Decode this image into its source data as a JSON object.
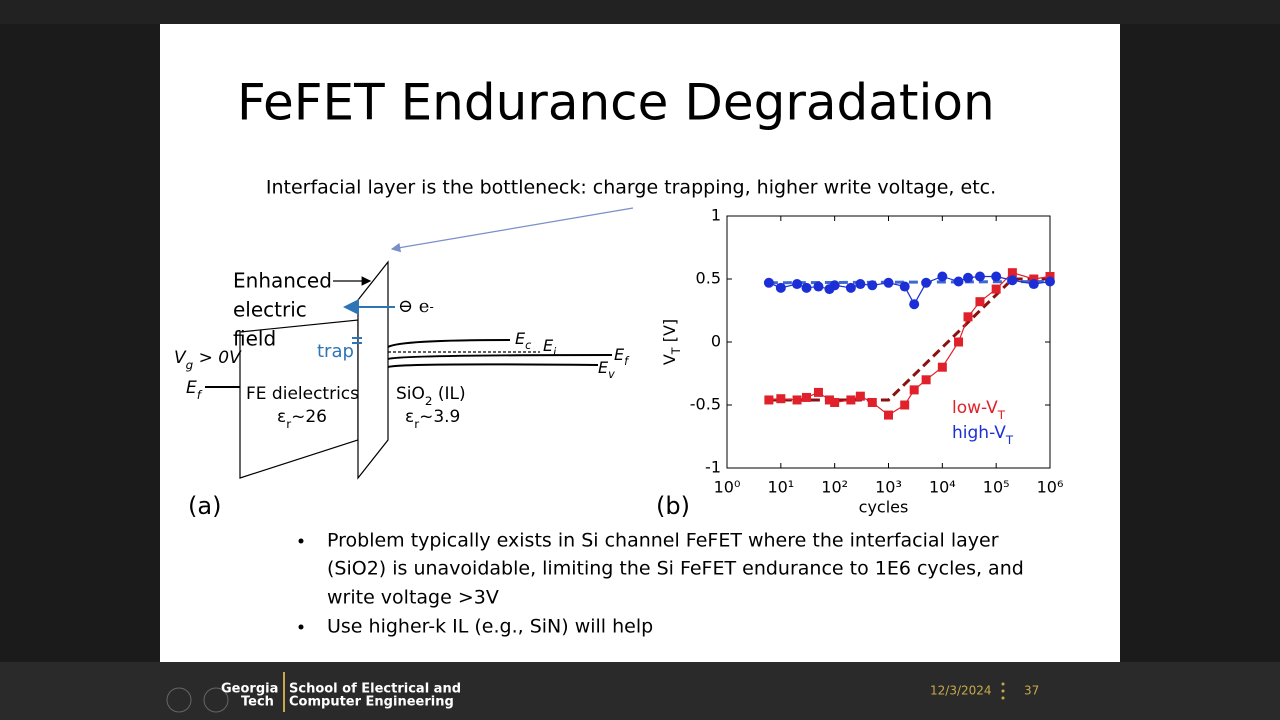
{
  "slide": {
    "title": "FeFET Endurance Degradation",
    "subtitle": "Interfacial layer is the bottleneck: charge trapping, higher write voltage, etc.",
    "diagram": {
      "enhanced": [
        "Enhanced",
        "electric",
        "field"
      ],
      "electron": {
        "main": "⊖ e",
        "sup": "-"
      },
      "trap": "trap",
      "vg": {
        "main": "V",
        "sub": "g",
        "suffix": " > 0V"
      },
      "ef_left": {
        "main": "E",
        "sub": "f"
      },
      "fe": "FE dielectrics",
      "fe_eps": {
        "main": "ε",
        "sub": "r",
        "suffix": "~26"
      },
      "sio2": {
        "main": "SiO",
        "sub": "2",
        "suffix": " (IL)"
      },
      "sio2_eps": {
        "main": "ε",
        "sub": "r",
        "suffix": "~3.9"
      },
      "ec": {
        "main": "E",
        "sub": "c"
      },
      "ei": {
        "main": "E",
        "sub": "i"
      },
      "ef": {
        "main": "E",
        "sub": "f"
      },
      "ev": {
        "main": "E",
        "sub": "v"
      },
      "label_a": "(a)",
      "label_b": "(b)"
    },
    "bullets": [
      "Problem typically exists in Si channel FeFET where the interfacial layer",
      "(SiO2) is unavoidable, limiting the Si FeFET endurance to 1E6 cycles, and",
      "write voltage >3V",
      "Use higher-k IL (e.g., SiN) will help"
    ],
    "footer": {
      "logo_top": "Georgia",
      "logo_bottom": "Tech",
      "school_top": "School of Electrical and",
      "school_bottom": "Computer Engineering",
      "date": "12/3/2024",
      "page": "37"
    }
  },
  "chart_data": {
    "type": "line",
    "xlabel": "cycles",
    "ylabel": {
      "main": "V",
      "sub": "T",
      "suffix": " [V]"
    },
    "xscale": "log",
    "xlim": [
      1,
      1000000
    ],
    "ylim": [
      -1,
      1
    ],
    "xticks": [
      {
        "value": 1,
        "label": "10⁰"
      },
      {
        "value": 10,
        "label": "10¹"
      },
      {
        "value": 100,
        "label": "10²"
      },
      {
        "value": 1000,
        "label": "10³"
      },
      {
        "value": 10000,
        "label": "10⁴"
      },
      {
        "value": 100000,
        "label": "10⁵"
      },
      {
        "value": 1000000,
        "label": "10⁶"
      }
    ],
    "yticks": [
      1,
      0.5,
      0,
      -0.5,
      -1
    ],
    "grid": false,
    "legend": "lower right",
    "x": [
      6,
      10,
      20,
      30,
      50,
      80,
      100,
      200,
      300,
      500,
      1000,
      2000,
      3000,
      5000,
      10000,
      20000,
      30000,
      50000,
      100000,
      200000,
      500000,
      1000000
    ],
    "series": [
      {
        "name": "low-V",
        "name_sub": "T",
        "color": "#e0202a",
        "marker": "square",
        "values": [
          -0.46,
          -0.45,
          -0.46,
          -0.44,
          -0.4,
          -0.46,
          -0.48,
          -0.46,
          -0.43,
          -0.48,
          -0.58,
          -0.5,
          -0.38,
          -0.3,
          -0.2,
          0,
          0.2,
          0.32,
          0.42,
          0.55,
          0.5,
          0.52
        ]
      },
      {
        "name": "high-V",
        "name_sub": "T",
        "color": "#1c2fd6",
        "marker": "circle",
        "values": [
          0.47,
          0.43,
          0.46,
          0.43,
          0.44,
          0.42,
          0.45,
          0.43,
          0.46,
          0.45,
          0.47,
          0.44,
          0.3,
          0.47,
          0.52,
          0.48,
          0.51,
          0.52,
          0.52,
          0.49,
          0.46,
          0.48
        ]
      }
    ],
    "fits": [
      {
        "color": "#8b1010",
        "x": [
          6,
          1000,
          200000,
          1000000
        ],
        "values": [
          -0.46,
          -0.46,
          0.5,
          0.5
        ]
      },
      {
        "color": "#3a6ad0",
        "x": [
          6,
          1000000
        ],
        "values": [
          0.47,
          0.48
        ]
      }
    ]
  }
}
